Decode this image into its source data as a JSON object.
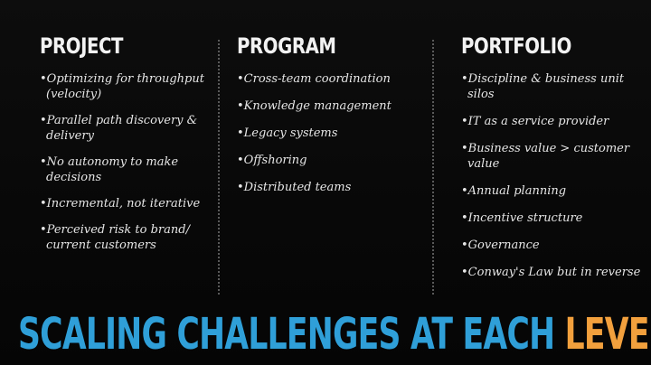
{
  "columns": [
    {
      "heading": "PROJECT",
      "items": [
        "Optimizing for throughput (velocity)",
        "Parallel path discovery & delivery",
        "No autonomy to make decisions",
        "Incremental, not iterative",
        "Perceived risk to brand/ current customers"
      ]
    },
    {
      "heading": "PROGRAM",
      "items": [
        "Cross-team coordination",
        "Knowledge management",
        "Legacy systems",
        "Offshoring",
        "Distributed teams"
      ]
    },
    {
      "heading": "PORTFOLIO",
      "items": [
        "Discipline & business unit silos",
        "IT as a service provider",
        "Business value > customer value",
        "Annual planning",
        "Incentive structure",
        "Governance",
        "Conway's Law but in reverse"
      ]
    }
  ],
  "bullet": "•",
  "banner": {
    "main": "SCALING CHALLENGES AT EACH ",
    "accent": "LEVEL"
  },
  "colors": {
    "background": "#0a0a0a",
    "text": "#e6e6e6",
    "heading": "#f2f2f2",
    "banner_main": "#2f9fd8",
    "banner_accent": "#f2a03d",
    "divider": "#5a5a5a"
  }
}
